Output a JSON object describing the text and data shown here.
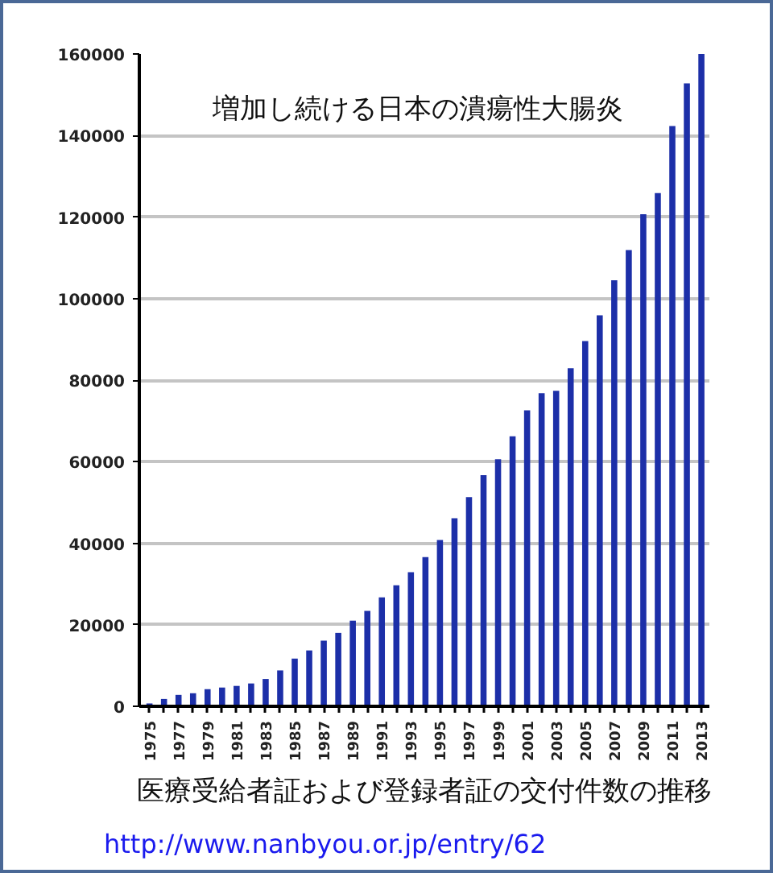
{
  "chart_data": {
    "type": "bar",
    "title": "増加し続ける日本の潰瘍性大腸炎",
    "annotations": [
      "医療受給者証および登録者証の交付件数の推移",
      "http://www.nanbyou.or.jp/entry/62"
    ],
    "categories": [
      "1975",
      null,
      "1977",
      null,
      "1979",
      null,
      "1981",
      null,
      "1983",
      null,
      "1985",
      null,
      "1987",
      null,
      "1989",
      null,
      "1991",
      null,
      "1993",
      null,
      "1995",
      null,
      "1997",
      null,
      "1999",
      null,
      "2001",
      null,
      "2003",
      null,
      "2005",
      null,
      "2007",
      null,
      "2009",
      null,
      "2011",
      null,
      "2013"
    ],
    "values": [
      700,
      1800,
      2800,
      3200,
      4200,
      4600,
      5000,
      5600,
      6700,
      8800,
      11700,
      13700,
      16100,
      18000,
      21000,
      23400,
      26700,
      29700,
      32900,
      36600,
      40800,
      46100,
      51300,
      56700,
      60600,
      66200,
      72600,
      76800,
      77400,
      82900,
      89600,
      95900,
      104500,
      111900,
      120700,
      125900,
      142300,
      152800,
      160000
    ],
    "color": "#1c2fa8",
    "ylim": [
      0,
      160000
    ],
    "yticks": [
      0,
      20000,
      40000,
      60000,
      80000,
      100000,
      120000,
      140000,
      160000
    ],
    "grid": "y"
  }
}
